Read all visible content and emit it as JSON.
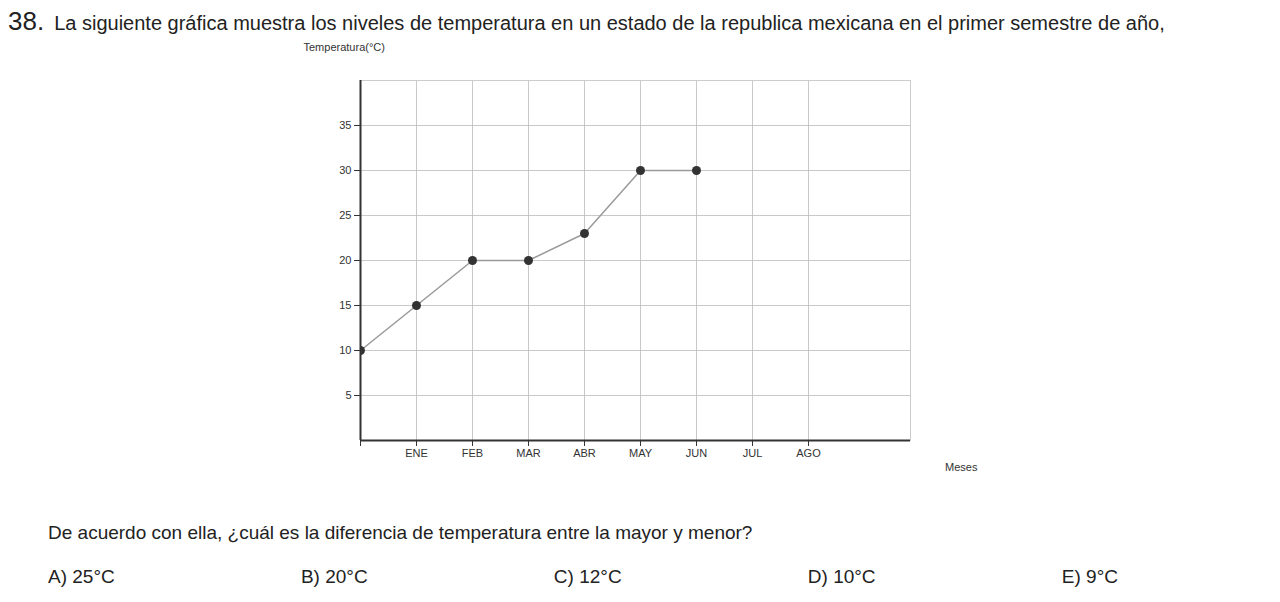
{
  "question_number": "38.",
  "question": "La siguiente gráfica muestra los niveles de temperatura en un estado de la republica mexicana en el primer semestre de año,",
  "prompt": "De acuerdo con ella, ¿cuál es la diferencia de temperatura entre la mayor y menor?",
  "options": [
    "A) 25°C",
    "B) 20°C",
    "C) 12°C",
    "D) 10°C",
    "E) 9°C"
  ],
  "chart_data": {
    "type": "line",
    "y_label": "Temperatura(°C)",
    "x_label": "Meses",
    "categories": [
      null,
      "ENE",
      "FEB",
      "MAR",
      "ABR",
      "MAY",
      "JUN",
      "JUL",
      "AGO"
    ],
    "values": [
      10,
      15,
      20,
      20,
      23,
      30,
      30,
      null,
      null
    ],
    "color": "#9a9a9a",
    "marker": "circle",
    "ylim": [
      0,
      40
    ],
    "yticks": [
      5,
      10,
      15,
      20,
      25,
      30,
      35
    ],
    "grid": true
  }
}
